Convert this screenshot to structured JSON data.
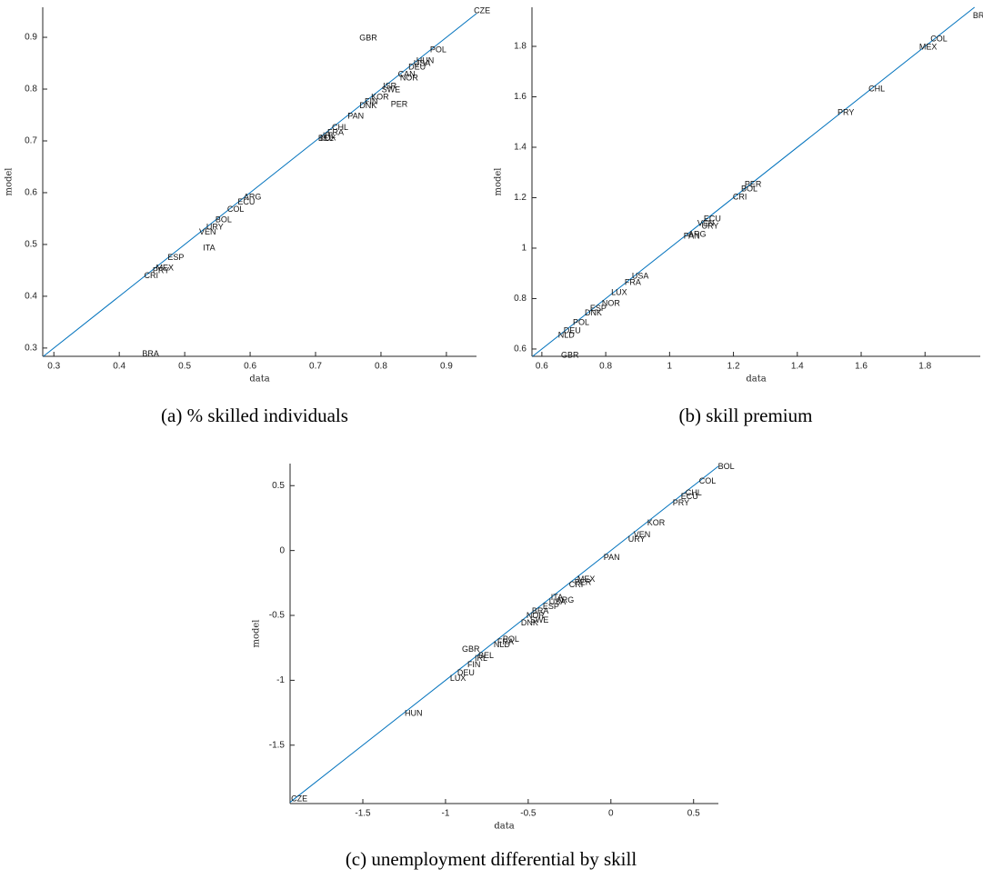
{
  "chart_data": [
    {
      "type": "scatter",
      "caption": "(a) % skilled individuals",
      "xlabel": "data",
      "ylabel": "model",
      "xlim": [
        0.283,
        0.946
      ],
      "ylim": [
        0.284,
        0.958
      ],
      "xticks": [
        0.3,
        0.4,
        0.5,
        0.6,
        0.7,
        0.8,
        0.9
      ],
      "yticks": [
        0.3,
        0.4,
        0.5,
        0.6,
        0.7,
        0.8,
        0.9
      ],
      "labels": [
        "CZE",
        "GBR",
        "POL",
        "HUN",
        "USA",
        "DEU",
        "CAN",
        "NOR",
        "ISR",
        "SWE",
        "KOR",
        "FIN",
        "DNK",
        "PER",
        "PAN",
        "CHL",
        "FRA",
        "IRL",
        "LUX",
        "BEL",
        "ARG",
        "ECU",
        "COL",
        "BOL",
        "URY",
        "VEN",
        "ITA",
        "ESP",
        "MEX",
        "PRY",
        "CRI",
        "BRA"
      ],
      "x": [
        0.942,
        0.767,
        0.875,
        0.854,
        0.85,
        0.842,
        0.826,
        0.829,
        0.803,
        0.801,
        0.785,
        0.775,
        0.767,
        0.815,
        0.749,
        0.725,
        0.718,
        0.711,
        0.707,
        0.704,
        0.59,
        0.581,
        0.565,
        0.547,
        0.533,
        0.522,
        0.528,
        0.474,
        0.456,
        0.451,
        0.438,
        0.435
      ],
      "y": [
        0.951,
        0.898,
        0.875,
        0.854,
        0.849,
        0.842,
        0.828,
        0.821,
        0.805,
        0.798,
        0.784,
        0.775,
        0.767,
        0.77,
        0.747,
        0.725,
        0.716,
        0.709,
        0.705,
        0.704,
        0.591,
        0.581,
        0.567,
        0.547,
        0.533,
        0.523,
        0.493,
        0.474,
        0.454,
        0.449,
        0.439,
        0.288
      ]
    },
    {
      "type": "scatter",
      "caption": "(b) skill premium",
      "xlabel": "data",
      "ylabel": "model",
      "xlim": [
        0.569,
        1.973
      ],
      "ylim": [
        0.571,
        1.955
      ],
      "xticks": [
        0.6,
        0.8,
        1,
        1.2,
        1.4,
        1.6,
        1.8
      ],
      "yticks": [
        0.6,
        0.8,
        1,
        1.2,
        1.4,
        1.6,
        1.8
      ],
      "labels": [
        "BRA",
        "COL",
        "MEX",
        "CHL",
        "PRY",
        "PER",
        "BOL",
        "CRI",
        "ECU",
        "VEN",
        "URY",
        "ARG",
        "PAN",
        "USA",
        "FRA",
        "LUX",
        "NOR",
        "ESP",
        "DNK",
        "POL",
        "DEU",
        "NLD",
        "GBR"
      ],
      "x": [
        1.95,
        1.817,
        1.782,
        1.623,
        1.526,
        1.235,
        1.224,
        1.198,
        1.107,
        1.087,
        1.1,
        1.059,
        1.044,
        0.882,
        0.859,
        0.817,
        0.788,
        0.751,
        0.734,
        0.697,
        0.668,
        0.651,
        0.66
      ],
      "y": [
        1.92,
        1.829,
        1.796,
        1.631,
        1.537,
        1.252,
        1.234,
        1.202,
        1.115,
        1.097,
        1.086,
        1.054,
        1.047,
        0.888,
        0.863,
        0.823,
        0.78,
        0.759,
        0.741,
        0.704,
        0.672,
        0.654,
        0.575
      ]
    },
    {
      "type": "scatter",
      "caption": "(c) unemployment differential by skill",
      "xlabel": "data",
      "ylabel": "model",
      "xlim": [
        -1.94,
        0.65
      ],
      "ylim": [
        -1.95,
        0.67
      ],
      "xticks": [
        -1.5,
        -1,
        -0.5,
        0,
        0.5
      ],
      "yticks": [
        -1.5,
        -1,
        -0.5,
        0,
        0.5
      ],
      "labels": [
        "BOL",
        "COL",
        "CHL",
        "ECU",
        "PRY",
        "KOR",
        "VEN",
        "URY",
        "PAN",
        "MEX",
        "PER",
        "CRI",
        "ITA",
        "ARG",
        "USA",
        "ESP",
        "BRA",
        "NOR",
        "SWE",
        "DNK",
        "POL",
        "FRA",
        "NLD",
        "GBR",
        "BEL",
        "IRL",
        "FIN",
        "DEU",
        "LUX",
        "HUN",
        "CZE"
      ],
      "x": [
        0.648,
        0.533,
        0.451,
        0.423,
        0.374,
        0.22,
        0.137,
        0.104,
        -0.044,
        -0.203,
        -0.22,
        -0.253,
        -0.363,
        -0.33,
        -0.374,
        -0.412,
        -0.478,
        -0.511,
        -0.489,
        -0.544,
        -0.654,
        -0.687,
        -0.709,
        -0.901,
        -0.802,
        -0.824,
        -0.868,
        -0.929,
        -0.973,
        -1.247,
        -1.934
      ],
      "y": [
        0.643,
        0.531,
        0.44,
        0.413,
        0.364,
        0.21,
        0.119,
        0.084,
        -0.056,
        -0.224,
        -0.25,
        -0.266,
        -0.364,
        -0.385,
        -0.399,
        -0.434,
        -0.469,
        -0.503,
        -0.538,
        -0.559,
        -0.685,
        -0.706,
        -0.727,
        -0.762,
        -0.811,
        -0.832,
        -0.881,
        -0.944,
        -0.986,
        -1.259,
        -1.916
      ]
    }
  ]
}
